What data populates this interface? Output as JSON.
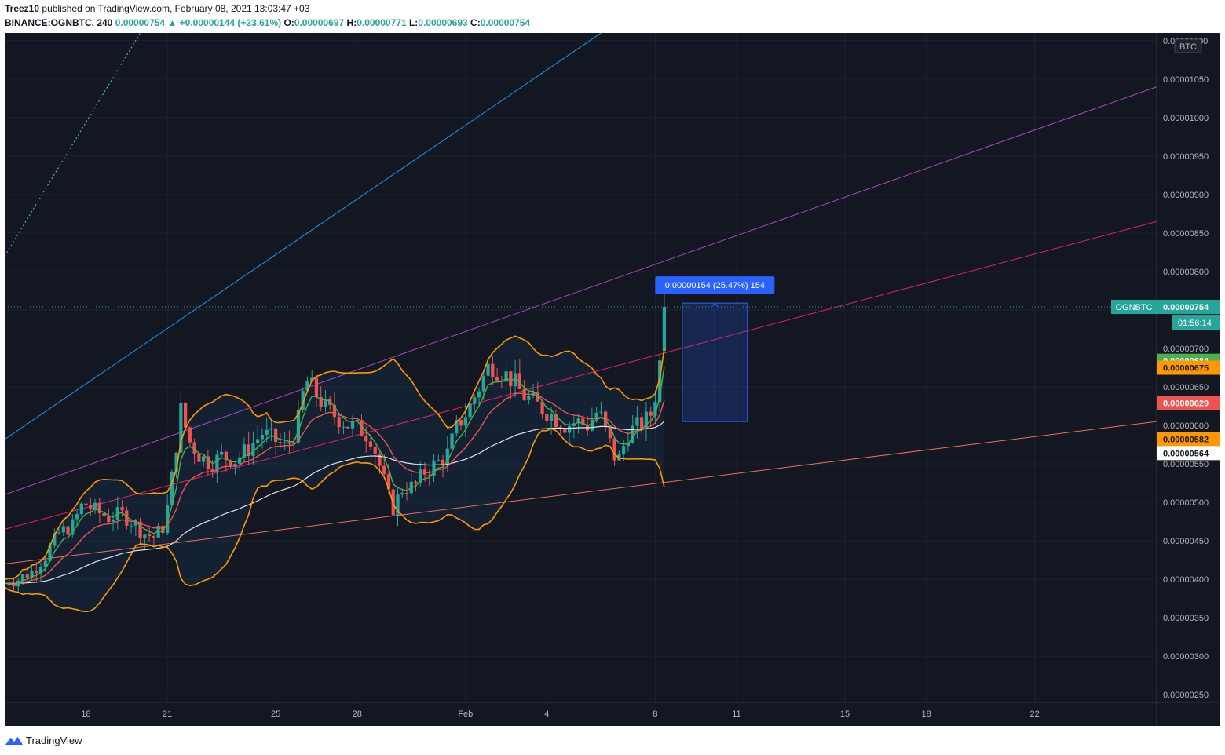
{
  "header": {
    "author": "Treez10",
    "published": "published on TradingView.com, February 08, 2021 13:03:47 +03",
    "symbol": "BINANCE:OGNBTC, 240",
    "last": "0.00000754",
    "change": "▲ +0.00000144 (+23.61%)",
    "o_label": "O:",
    "o_value": "0.00000697",
    "h_label": "H:",
    "h_value": "0.00000771",
    "l_label": "L:",
    "l_value": "0.00000693",
    "c_label": "C:",
    "c_value": "0.00000754"
  },
  "footer": {
    "brand": "TradingView"
  },
  "colors": {
    "background": "#131722",
    "grid": "#1e222d",
    "up": "#26a69a",
    "down": "#ef5350",
    "ema_green": "#4caf50",
    "ema_red": "#ef5350",
    "bb_orange": "#ff9800",
    "ma_white": "#e0e3eb",
    "trend_blue": "#2196f3",
    "trend_purple": "#ab47bc",
    "trend_pink": "#e91e63",
    "trend_salmon": "#ef6c60",
    "measure": "#2962ff"
  },
  "chart_data": {
    "type": "candlestick",
    "currency": "BTC",
    "ylim": [
      2.4e-06,
      1.11e-05
    ],
    "y_ticks": [
      "0.00000250",
      "0.00000300",
      "0.00000350",
      "0.00000400",
      "0.00000450",
      "0.00000500",
      "0.00000550",
      "0.00000600",
      "0.00000650",
      "0.00000700",
      "0.00000750",
      "0.00000800",
      "0.00000850",
      "0.00000900",
      "0.00000950",
      "0.00001000",
      "0.00001050",
      "0.00001100"
    ],
    "x_ticks": [
      {
        "label": "18",
        "day": 18
      },
      {
        "label": "21",
        "day": 21
      },
      {
        "label": "25",
        "day": 25
      },
      {
        "label": "28",
        "day": 28
      },
      {
        "label": "Feb",
        "day": 32
      },
      {
        "label": "4",
        "day": 35
      },
      {
        "label": "8",
        "day": 39
      },
      {
        "label": "11",
        "day": 42
      },
      {
        "label": "15",
        "day": 46
      },
      {
        "label": "18",
        "day": 49
      },
      {
        "label": "22",
        "day": 53
      }
    ],
    "x_range_days": [
      15,
      57.5
    ],
    "candle_hours": 4,
    "key_points": [
      [
        15.0,
        3.95
      ],
      [
        15.5,
        4.0
      ],
      [
        16.0,
        4.1
      ],
      [
        16.5,
        4.3
      ],
      [
        17.0,
        4.6
      ],
      [
        17.5,
        4.7
      ],
      [
        17.9,
        5.0
      ],
      [
        18.3,
        4.9
      ],
      [
        18.8,
        4.8
      ],
      [
        19.3,
        4.85
      ],
      [
        19.7,
        4.75
      ],
      [
        20.1,
        4.6
      ],
      [
        20.5,
        4.55
      ],
      [
        20.9,
        4.7
      ],
      [
        21.2,
        5.4
      ],
      [
        21.5,
        6.2
      ],
      [
        21.8,
        5.8
      ],
      [
        22.2,
        5.6
      ],
      [
        22.6,
        5.5
      ],
      [
        23.0,
        5.6
      ],
      [
        23.5,
        5.55
      ],
      [
        24.0,
        5.7
      ],
      [
        24.5,
        5.9
      ],
      [
        25.0,
        5.8
      ],
      [
        25.4,
        5.7
      ],
      [
        25.8,
        6.0
      ],
      [
        26.1,
        6.6
      ],
      [
        26.5,
        6.4
      ],
      [
        26.9,
        6.2
      ],
      [
        27.3,
        6.1
      ],
      [
        27.7,
        6.0
      ],
      [
        28.1,
        5.95
      ],
      [
        28.5,
        5.85
      ],
      [
        28.9,
        5.4
      ],
      [
        29.3,
        4.9
      ],
      [
        29.7,
        5.2
      ],
      [
        30.1,
        5.2
      ],
      [
        30.5,
        5.4
      ],
      [
        30.9,
        5.5
      ],
      [
        31.3,
        5.6
      ],
      [
        31.7,
        6.0
      ],
      [
        32.1,
        6.2
      ],
      [
        32.5,
        6.5
      ],
      [
        32.9,
        6.8
      ],
      [
        33.3,
        6.7
      ],
      [
        33.7,
        6.6
      ],
      [
        34.1,
        6.4
      ],
      [
        34.5,
        6.3
      ],
      [
        34.9,
        6.2
      ],
      [
        35.3,
        6.1
      ],
      [
        35.7,
        6.0
      ],
      [
        36.1,
        6.05
      ],
      [
        36.5,
        6.0
      ],
      [
        36.9,
        6.2
      ],
      [
        37.3,
        5.8
      ],
      [
        37.6,
        5.5
      ],
      [
        38.0,
        5.9
      ],
      [
        38.4,
        6.0
      ],
      [
        38.8,
        6.1
      ],
      [
        39.0,
        6.4
      ],
      [
        39.2,
        6.9
      ],
      [
        39.4,
        7.54
      ]
    ],
    "indicators": [
      {
        "name": "EMA-fast",
        "color": "#4caf50",
        "last": "0.00000684"
      },
      {
        "name": "BB-upper",
        "color": "#ff9800",
        "last": "0.00000675"
      },
      {
        "name": "EMA-mid",
        "color": "#ef5350",
        "last": "0.00000629"
      },
      {
        "name": "BB-lower",
        "color": "#ff9800",
        "last": "0.00000582"
      },
      {
        "name": "MA-200",
        "color": "#e0e3eb",
        "last": "0.00000564"
      }
    ],
    "trendlines": [
      {
        "color": "#2196f3",
        "from": [
          15.0,
          5.82
        ],
        "to": [
          37.0,
          11.1
        ],
        "style": "solid"
      },
      {
        "color": "#4fc3f7",
        "from": [
          15.0,
          8.2
        ],
        "to": [
          20.0,
          11.1
        ],
        "style": "dotted"
      },
      {
        "color": "#ab47bc",
        "from": [
          15.0,
          5.1
        ],
        "to": [
          57.5,
          10.4
        ],
        "style": "solid"
      },
      {
        "color": "#e91e63",
        "from": [
          15.0,
          4.65
        ],
        "to": [
          57.5,
          8.65
        ],
        "style": "solid"
      },
      {
        "color": "#ef6c60",
        "from": [
          15.0,
          4.2
        ],
        "to": [
          57.5,
          6.05
        ],
        "style": "solid"
      }
    ],
    "price_line": 7.54,
    "measure": {
      "from_day": 40.0,
      "to_day": 42.4,
      "low": 6.05,
      "high": 7.59,
      "label": "0.00000154 (25.47%) 154"
    },
    "last_price_label": {
      "symbol": "OGNBTC",
      "price": "0.00000754",
      "countdown": "01:56:14"
    }
  }
}
